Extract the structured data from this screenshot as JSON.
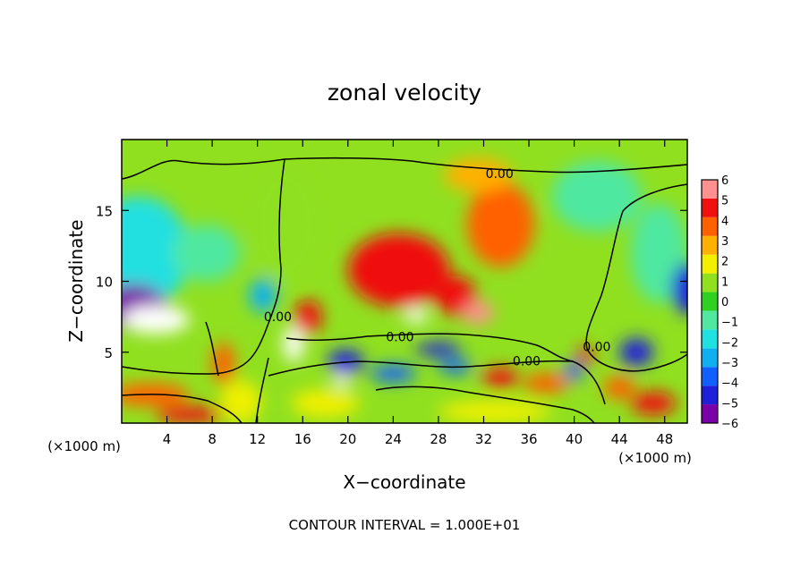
{
  "chart_data": {
    "type": "heatmap",
    "title": "zonal velocity",
    "xlabel": "X−coordinate",
    "ylabel": "Z−coordinate",
    "x_unit_left": "(×1000 m)",
    "x_unit_right": "(×1000 m)",
    "footer": "CONTOUR INTERVAL = 1.000E+01",
    "xlim": [
      0,
      50
    ],
    "ylim": [
      0,
      20
    ],
    "x_ticks": [
      4,
      8,
      12,
      16,
      20,
      24,
      28,
      32,
      36,
      40,
      44,
      48
    ],
    "y_ticks": [
      5,
      10,
      15
    ],
    "colorbar": {
      "min": -6,
      "max": 6,
      "ticks": [
        6,
        5,
        4,
        3,
        2,
        1,
        0,
        -1,
        -2,
        -3,
        -4,
        -5,
        -6
      ],
      "colors": [
        "#7a00a8",
        "#2020d8",
        "#1060ff",
        "#10b0f0",
        "#20e0e0",
        "#50e8a0",
        "#30d020",
        "#90e020",
        "#f0f000",
        "#ffb000",
        "#ff6000",
        "#f01010",
        "#ff9090"
      ]
    },
    "contour_labels": [
      {
        "text": "0.00",
        "x": 33.4,
        "z": 17.6
      },
      {
        "text": "0.00",
        "x": 13.8,
        "z": 7.5
      },
      {
        "text": "0.00",
        "x": 24.6,
        "z": 6.1
      },
      {
        "text": "0.00",
        "x": 35.8,
        "z": 4.4
      },
      {
        "text": "0.00",
        "x": 42.0,
        "z": 5.4
      }
    ],
    "features": [
      {
        "x": 1.5,
        "z": 12.0,
        "value": -1.5,
        "sx": 4.5,
        "sz": 4.0
      },
      {
        "x": 1.0,
        "z": 8.2,
        "value": -5.5,
        "sx": 3.0,
        "sz": 1.6
      },
      {
        "x": 3.0,
        "z": 7.3,
        "value": -7.0,
        "sx": 3.0,
        "sz": 1.0
      },
      {
        "x": 7.5,
        "z": 12.0,
        "value": -1.2,
        "sx": 3.0,
        "sz": 2.0
      },
      {
        "x": 12.5,
        "z": 9.0,
        "value": -3.0,
        "sx": 1.2,
        "sz": 1.2
      },
      {
        "x": 14.5,
        "z": 14.0,
        "value": 0.5,
        "sx": 3.0,
        "sz": 4.0
      },
      {
        "x": 9.0,
        "z": 4.2,
        "value": 3.5,
        "sx": 1.0,
        "sz": 1.5
      },
      {
        "x": 10.5,
        "z": 1.5,
        "value": 1.5,
        "sx": 1.8,
        "sz": 1.5
      },
      {
        "x": 2.5,
        "z": 2.0,
        "value": 4.0,
        "sx": 3.5,
        "sz": 0.8
      },
      {
        "x": 6.0,
        "z": 0.6,
        "value": 5.0,
        "sx": 3.0,
        "sz": 0.6
      },
      {
        "x": 15.2,
        "z": 5.6,
        "value": 6.5,
        "sx": 0.9,
        "sz": 1.3
      },
      {
        "x": 16.5,
        "z": 7.5,
        "value": 4.2,
        "sx": 1.2,
        "sz": 1.2
      },
      {
        "x": 19.5,
        "z": 3.4,
        "value": -7.0,
        "sx": 0.8,
        "sz": 0.8
      },
      {
        "x": 19.8,
        "z": 4.3,
        "value": -4.2,
        "sx": 1.6,
        "sz": 0.9
      },
      {
        "x": 24.0,
        "z": 3.5,
        "value": -3.5,
        "sx": 2.0,
        "sz": 0.6
      },
      {
        "x": 24.5,
        "z": 10.8,
        "value": 4.3,
        "sx": 4.5,
        "sz": 2.6
      },
      {
        "x": 29.5,
        "z": 9.0,
        "value": 5.0,
        "sx": 1.8,
        "sz": 1.4
      },
      {
        "x": 26.0,
        "z": 7.6,
        "value": 6.8,
        "sx": 1.1,
        "sz": 0.5
      },
      {
        "x": 31.5,
        "z": 7.8,
        "value": 5.2,
        "sx": 1.4,
        "sz": 0.8
      },
      {
        "x": 33.5,
        "z": 14.0,
        "value": 3.5,
        "sx": 3.0,
        "sz": 3.0
      },
      {
        "x": 31.5,
        "z": 17.5,
        "value": 2.8,
        "sx": 3.0,
        "sz": 1.2
      },
      {
        "x": 28.0,
        "z": 5.2,
        "value": -4.5,
        "sx": 2.0,
        "sz": 0.5
      },
      {
        "x": 29.5,
        "z": 4.0,
        "value": -4.0,
        "sx": 1.5,
        "sz": 0.5
      },
      {
        "x": 33.5,
        "z": 3.2,
        "value": 4.5,
        "sx": 1.6,
        "sz": 0.7
      },
      {
        "x": 37.5,
        "z": 2.8,
        "value": 3.5,
        "sx": 2.0,
        "sz": 0.7
      },
      {
        "x": 41.0,
        "z": 4.8,
        "value": 4.8,
        "sx": 0.7,
        "sz": 0.6
      },
      {
        "x": 40.0,
        "z": 3.7,
        "value": -4.0,
        "sx": 0.8,
        "sz": 0.7
      },
      {
        "x": 45.5,
        "z": 5.0,
        "value": -4.5,
        "sx": 1.5,
        "sz": 1.0
      },
      {
        "x": 47.5,
        "z": 12.0,
        "value": -1.3,
        "sx": 2.5,
        "sz": 3.5
      },
      {
        "x": 50.0,
        "z": 9.5,
        "value": -4.5,
        "sx": 1.4,
        "sz": 1.8
      },
      {
        "x": 42.0,
        "z": 16.0,
        "value": -0.8,
        "sx": 4.0,
        "sz": 2.5
      },
      {
        "x": 44.0,
        "z": 2.5,
        "value": 3.5,
        "sx": 1.4,
        "sz": 0.8
      },
      {
        "x": 47.0,
        "z": 1.4,
        "value": 4.2,
        "sx": 2.0,
        "sz": 0.8
      },
      {
        "x": 33.0,
        "z": 0.8,
        "value": 2.0,
        "sx": 5.0,
        "sz": 0.8
      },
      {
        "x": 18.0,
        "z": 1.4,
        "value": 1.5,
        "sx": 3.0,
        "sz": 1.0
      }
    ]
  }
}
